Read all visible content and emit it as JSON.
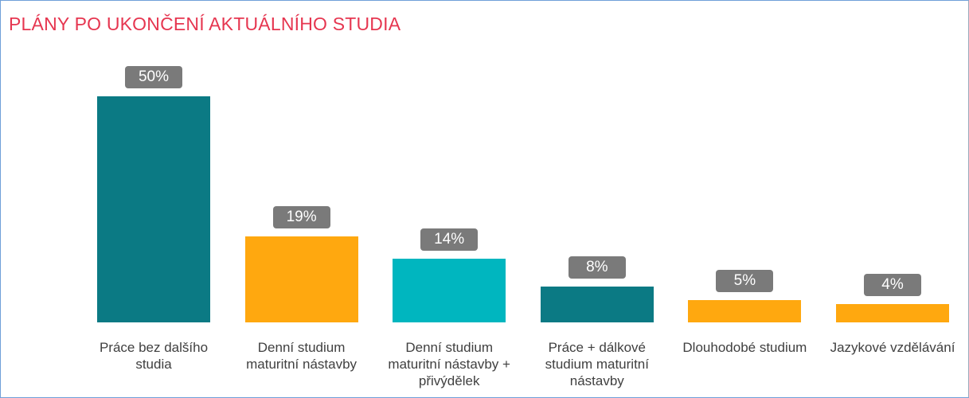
{
  "chart_data": {
    "type": "bar",
    "title": "PLÁNY PO UKONČENÍ AKTUÁLNÍHO STUDIA",
    "categories": [
      "Práce bez dalšího studia",
      "Denní studium maturitní nástavby",
      "Denní studium maturitní nástavby + přivýdělek",
      "Práce + dálkové studium maturitní nástavby",
      "Dlouhodobé studium",
      "Jazykové vzdělávání"
    ],
    "values": [
      50,
      19,
      14,
      8,
      5,
      4
    ],
    "value_labels": [
      "50%",
      "19%",
      "14%",
      "8%",
      "5%",
      "4%"
    ],
    "colors": [
      "#0b7a84",
      "#ffa80f",
      "#00b6bf",
      "#0b7a84",
      "#ffa80f",
      "#ffa80f"
    ]
  }
}
